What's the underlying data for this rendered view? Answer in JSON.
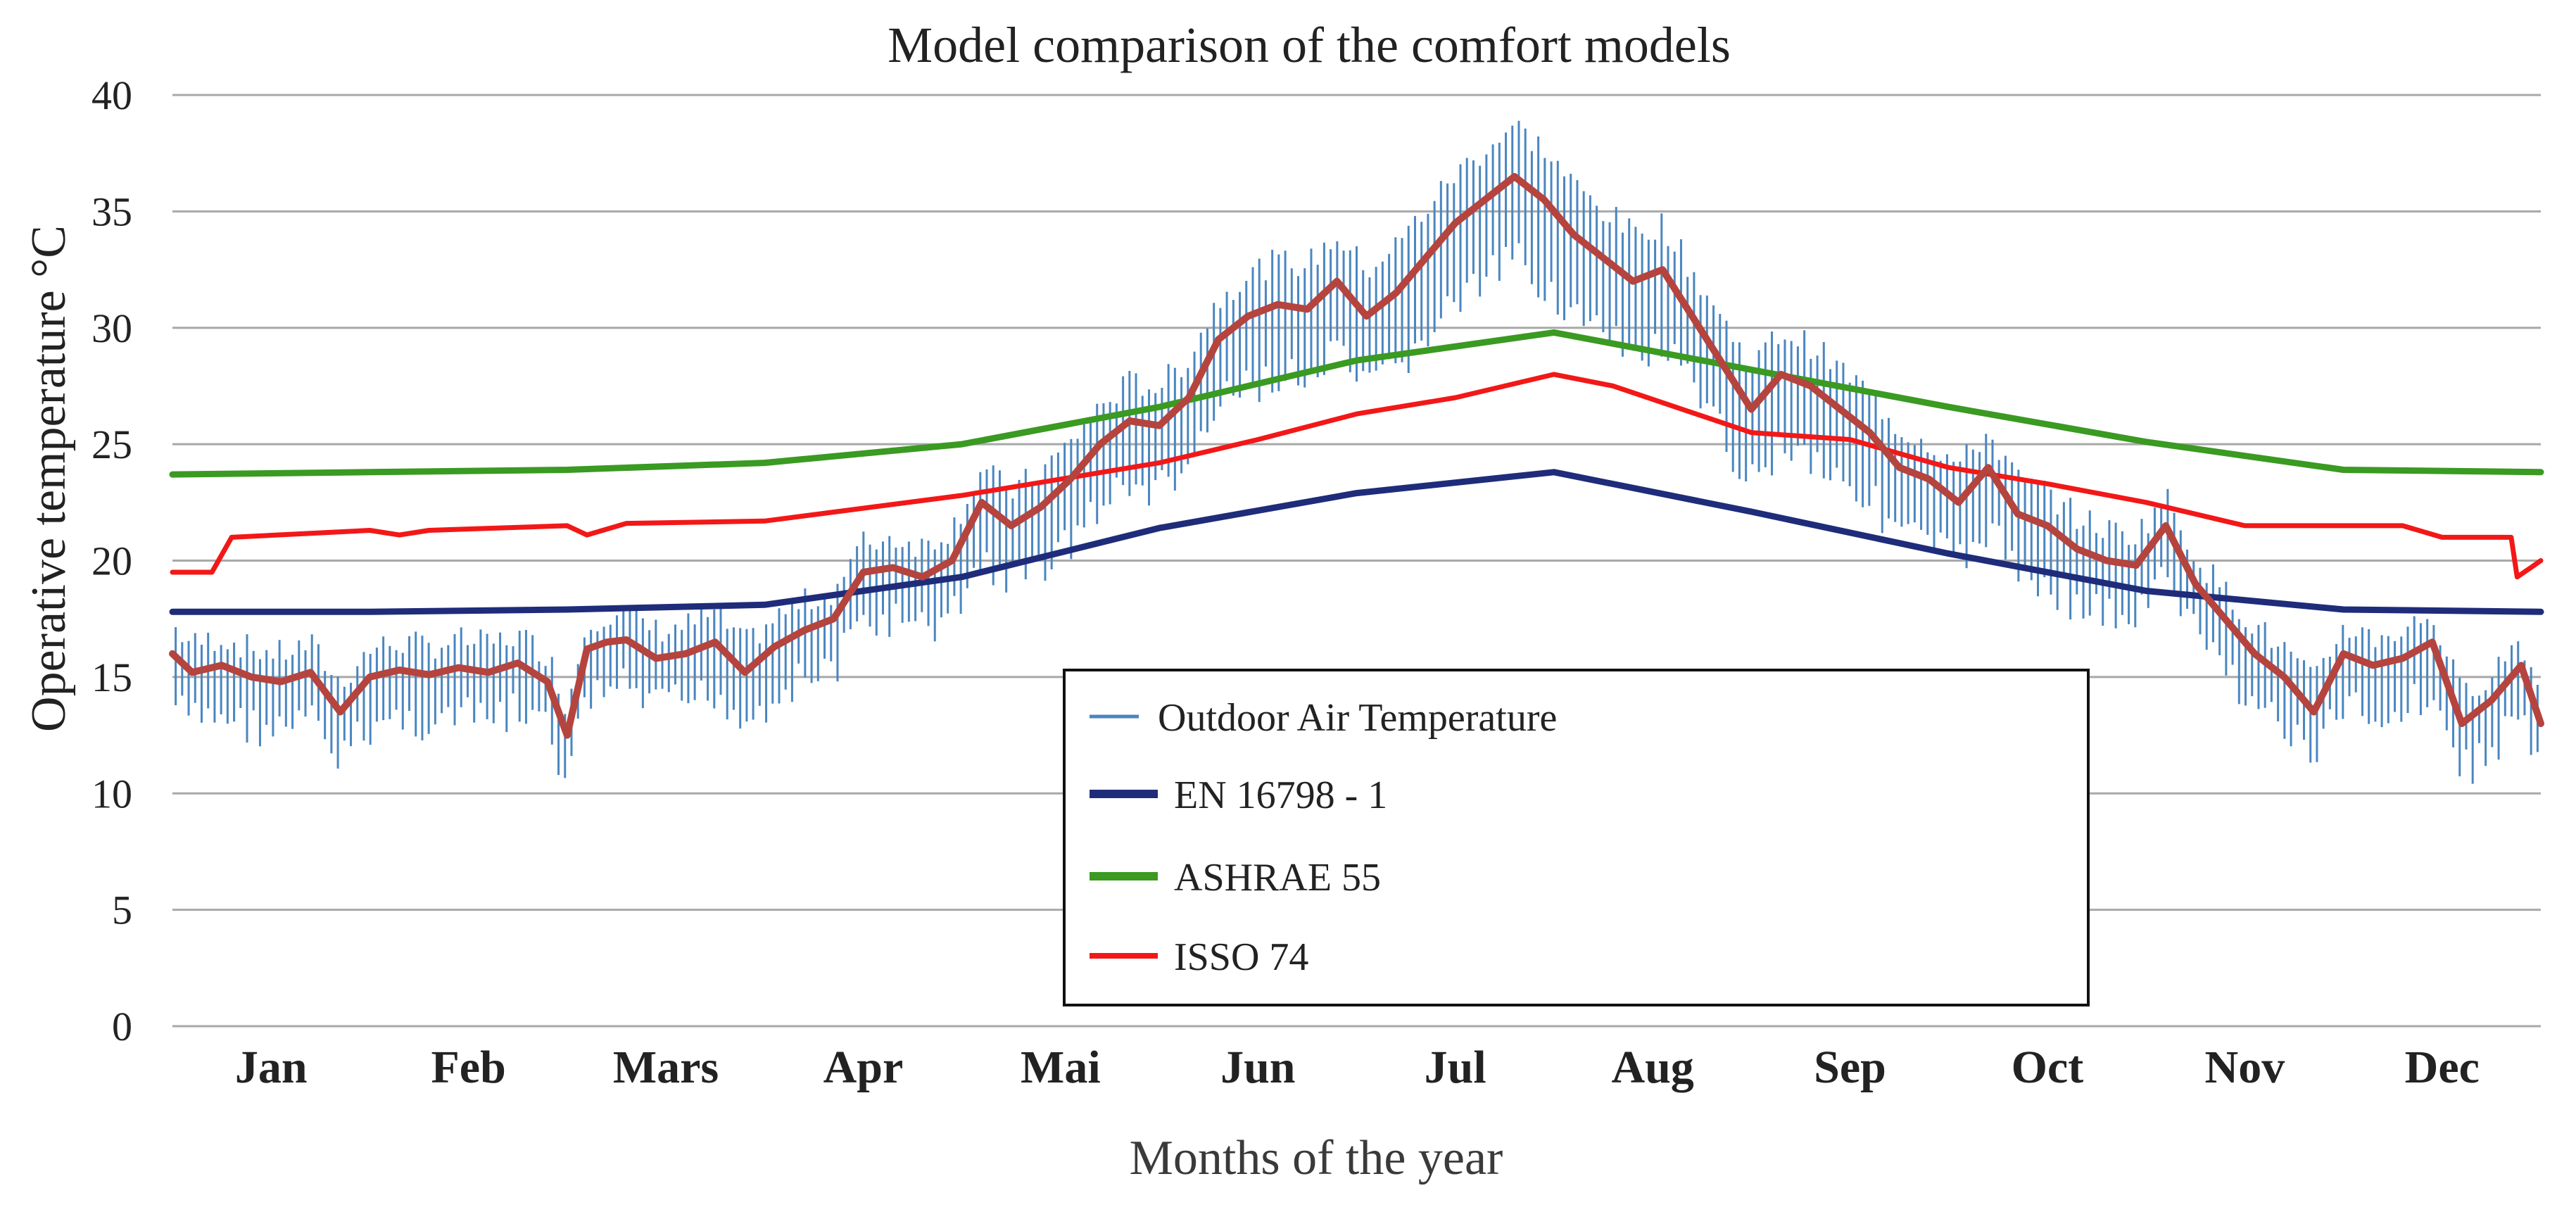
{
  "chart_data": {
    "type": "line",
    "title": "Model comparison of the comfort models",
    "xlabel": "Months of the year",
    "ylabel": "Operative temperature °C",
    "ylim": [
      0,
      40
    ],
    "yticks": [
      0,
      5,
      10,
      15,
      20,
      25,
      30,
      35,
      40
    ],
    "xlim": [
      0,
      12
    ],
    "categories": [
      "Jan",
      "Feb",
      "Mars",
      "Apr",
      "Mai",
      "Jun",
      "Jul",
      "Aug",
      "Sep",
      "Oct",
      "Nov",
      "Dec"
    ],
    "grid": true,
    "legend_position": "bottom-center",
    "colors": {
      "outdoor": "#4a86c0",
      "outdoor_mean": "#b5443e",
      "en16798": "#1f2c7a",
      "ashrae55": "#3a9a22",
      "isso74": "#f21818",
      "grid": "#a8a8a8",
      "text": "#222222"
    },
    "legend": [
      {
        "name": "Outdoor Air Temperature",
        "key": "outdoor"
      },
      {
        "name": "EN 16798 - 1",
        "key": "en16798"
      },
      {
        "name": "ASHRAE 55",
        "key": "ashrae55"
      },
      {
        "name": "ISSO 74",
        "key": "isso74"
      }
    ],
    "series": [
      {
        "name": "Outdoor Air Temperature",
        "key": "outdoor_mean",
        "x": [
          0,
          0.1,
          0.25,
          0.4,
          0.55,
          0.7,
          0.85,
          1.0,
          1.15,
          1.3,
          1.45,
          1.6,
          1.75,
          1.9,
          2.0,
          2.1,
          2.2,
          2.3,
          2.45,
          2.6,
          2.75,
          2.9,
          3.05,
          3.2,
          3.35,
          3.5,
          3.65,
          3.8,
          3.95,
          4.1,
          4.25,
          4.4,
          4.55,
          4.7,
          4.85,
          5.0,
          5.15,
          5.3,
          5.45,
          5.6,
          5.75,
          5.9,
          6.05,
          6.2,
          6.35,
          6.5,
          6.65,
          6.8,
          6.95,
          7.1,
          7.25,
          7.4,
          7.55,
          7.7,
          7.85,
          8.0,
          8.15,
          8.3,
          8.45,
          8.6,
          8.75,
          8.9,
          9.05,
          9.2,
          9.35,
          9.5,
          9.65,
          9.8,
          9.95,
          10.1,
          10.25,
          10.4,
          10.55,
          10.7,
          10.85,
          11.0,
          11.15,
          11.3,
          11.45,
          11.6,
          11.75,
          11.9,
          12.0
        ],
        "values": [
          16.0,
          15.2,
          15.5,
          15.0,
          14.8,
          15.2,
          13.5,
          15.0,
          15.3,
          15.1,
          15.4,
          15.2,
          15.6,
          14.8,
          12.5,
          16.2,
          16.5,
          16.6,
          15.8,
          16.0,
          16.5,
          15.2,
          16.3,
          17.0,
          17.5,
          19.5,
          19.7,
          19.3,
          20.0,
          22.5,
          21.5,
          22.3,
          23.5,
          25.0,
          26.0,
          25.8,
          27.0,
          29.5,
          30.5,
          31.0,
          30.8,
          32.0,
          30.5,
          31.5,
          33.0,
          34.5,
          35.5,
          36.5,
          35.5,
          34.0,
          33.0,
          32.0,
          32.5,
          30.5,
          28.5,
          26.5,
          28.0,
          27.5,
          26.5,
          25.5,
          24.0,
          23.5,
          22.5,
          24.0,
          22.0,
          21.5,
          20.5,
          20.0,
          19.8,
          21.5,
          19.0,
          17.5,
          16.0,
          15.0,
          13.5,
          16.0,
          15.5,
          15.8,
          16.5,
          13.0,
          14.0,
          15.5,
          13.0
        ]
      },
      {
        "name": "EN 16798 - 1",
        "key": "en16798",
        "x": [
          0,
          1,
          2,
          3,
          4,
          5,
          6,
          7,
          8,
          9,
          10,
          11,
          12
        ],
        "values": [
          17.8,
          17.8,
          17.9,
          18.1,
          19.3,
          21.4,
          22.9,
          23.8,
          22.1,
          20.3,
          18.7,
          17.9,
          17.8
        ]
      },
      {
        "name": "ASHRAE 55",
        "key": "ashrae55",
        "x": [
          0,
          1,
          2,
          3,
          4,
          5,
          6,
          7,
          8,
          9,
          10,
          11,
          12
        ],
        "values": [
          23.7,
          23.8,
          23.9,
          24.2,
          25.0,
          26.6,
          28.6,
          29.8,
          28.2,
          26.6,
          25.1,
          23.9,
          23.8
        ]
      },
      {
        "name": "ISSO 74",
        "key": "isso74",
        "x": [
          0,
          0.2,
          0.3,
          1.0,
          1.15,
          1.3,
          2.0,
          2.1,
          2.3,
          3.0,
          4.0,
          5.0,
          5.5,
          6.0,
          6.5,
          7.0,
          7.3,
          8.0,
          8.5,
          9.0,
          9.5,
          10.0,
          10.5,
          11.0,
          11.3,
          11.5,
          11.85,
          11.88,
          11.95,
          12.0
        ],
        "values": [
          19.5,
          19.5,
          21.0,
          21.3,
          21.1,
          21.3,
          21.5,
          21.1,
          21.6,
          21.7,
          22.8,
          24.2,
          25.2,
          26.3,
          27.0,
          28.0,
          27.5,
          25.5,
          25.2,
          24.0,
          23.3,
          22.5,
          21.5,
          21.5,
          21.5,
          21.0,
          21.0,
          19.3,
          19.7,
          20.0
        ]
      }
    ]
  }
}
